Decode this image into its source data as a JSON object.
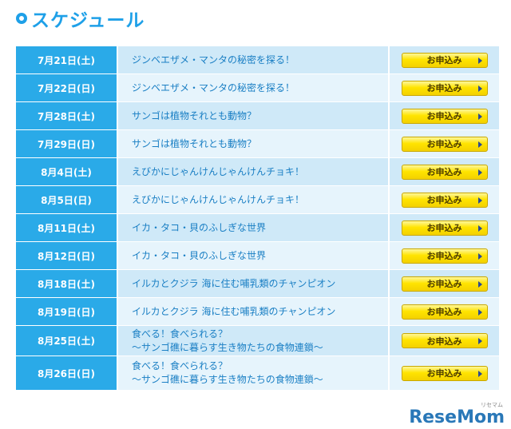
{
  "header": {
    "title": "スケジュール"
  },
  "apply_label": "お申込み",
  "rows": [
    {
      "date": "7月21日(土)",
      "event": [
        "ジンベエザメ・マンタの秘密を探る！"
      ]
    },
    {
      "date": "7月22日(日)",
      "event": [
        "ジンベエザメ・マンタの秘密を探る！"
      ]
    },
    {
      "date": "7月28日(土)",
      "event": [
        "サンゴは植物それとも動物？"
      ]
    },
    {
      "date": "7月29日(日)",
      "event": [
        "サンゴは植物それとも動物？"
      ]
    },
    {
      "date": "8月4日(土)",
      "event": [
        "えびかにじゃんけんじゃんけんチョキ！"
      ]
    },
    {
      "date": "8月5日(日)",
      "event": [
        "えびかにじゃんけんじゃんけんチョキ！"
      ]
    },
    {
      "date": "8月11日(土)",
      "event": [
        "イカ・タコ・貝のふしぎな世界"
      ]
    },
    {
      "date": "8月12日(日)",
      "event": [
        "イカ・タコ・貝のふしぎな世界"
      ]
    },
    {
      "date": "8月18日(土)",
      "event": [
        "イルカとクジラ 海に住む哺乳類のチャンピオン"
      ]
    },
    {
      "date": "8月19日(日)",
      "event": [
        "イルカとクジラ 海に住む哺乳類のチャンピオン"
      ]
    },
    {
      "date": "8月25日(土)",
      "event": [
        "食べる！食べられる？",
        "～サンゴ礁に暮らす生き物たちの食物連鎖～"
      ]
    },
    {
      "date": "8月26日(日)",
      "event": [
        "食べる！食べられる？",
        "～サンゴ礁に暮らす生き物たちの食物連鎖～"
      ]
    }
  ],
  "watermark": {
    "text": "ReseMom",
    "sub": "リセマム"
  }
}
